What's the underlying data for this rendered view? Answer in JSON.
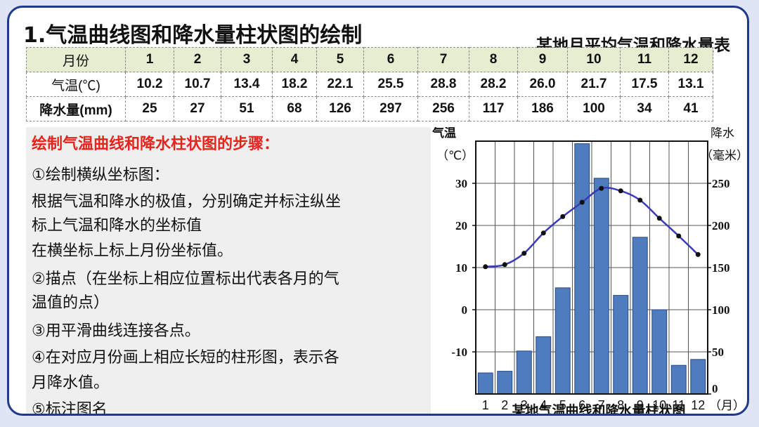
{
  "title": "1.气温曲线图和降水量柱状图的绘制",
  "table": {
    "title": "某地月平均气温和降水量表",
    "header_label": "月份",
    "months": [
      "1",
      "2",
      "3",
      "4",
      "5",
      "6",
      "7",
      "8",
      "9",
      "10",
      "11",
      "12"
    ],
    "temp_label": "气温(℃)",
    "temps": [
      "10.2",
      "10.7",
      "13.4",
      "18.2",
      "22.1",
      "25.5",
      "28.8",
      "28.2",
      "26.0",
      "21.7",
      "17.5",
      "13.1"
    ],
    "precip_label": "降水量(mm)",
    "precips": [
      "25",
      "27",
      "51",
      "68",
      "126",
      "297",
      "256",
      "117",
      "186",
      "100",
      "34",
      "41"
    ]
  },
  "steps": {
    "title": "绘制气温曲线和降水柱状图的步骤：",
    "lines": [
      "①绘制横纵坐标图：",
      "根据气温和降水的极值，分别确定并标注纵坐",
      "标上气温和降水的坐标值",
      "在横坐标上标上月份坐标值。",
      "②描点（在坐标上相应位置标出代表各月的气",
      "温值的点）",
      "③用平滑曲线连接各点。",
      "④在对应月份画上相应长短的柱形图，表示各",
      "月降水值。",
      "⑤标注图名"
    ]
  },
  "chart_data": {
    "type": "bar",
    "title": "某地气温曲线和降水量柱状图",
    "categories": [
      "1",
      "2",
      "3",
      "4",
      "5",
      "6",
      "7",
      "8",
      "9",
      "10",
      "11",
      "12"
    ],
    "xlabel": "（月）",
    "y_left_label": [
      "气温",
      "（℃）"
    ],
    "y_right_label": [
      "降水",
      "（毫米）"
    ],
    "y_left_ticks": [
      "30",
      "20",
      "10",
      "0",
      "-10"
    ],
    "y_right_ticks": [
      "250",
      "200",
      "150",
      "100",
      "50",
      "0"
    ],
    "y_left_range": [
      -20,
      40
    ],
    "y_right_range": [
      0,
      300
    ],
    "series": [
      {
        "type": "bar",
        "axis": "right",
        "values": [
          25,
          27,
          51,
          68,
          126,
          297,
          256,
          117,
          186,
          100,
          34,
          41
        ]
      },
      {
        "type": "line",
        "axis": "left",
        "values": [
          10.2,
          10.7,
          13.4,
          18.2,
          22.1,
          25.5,
          28.8,
          28.2,
          26.0,
          21.7,
          17.5,
          13.1
        ]
      }
    ],
    "bar_color": "#4f7bbf",
    "line_color": "#3a3ab8",
    "grid": true
  }
}
